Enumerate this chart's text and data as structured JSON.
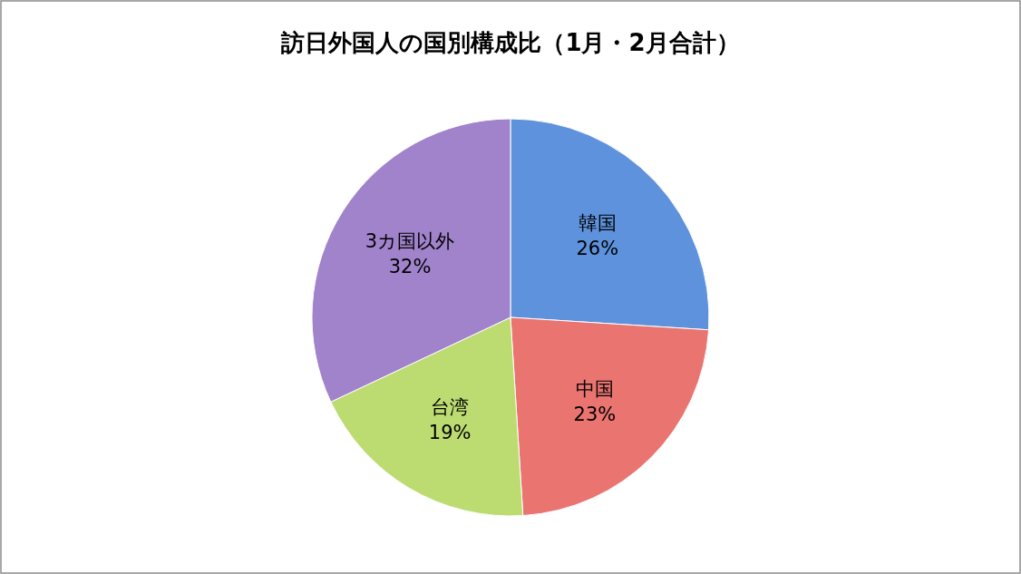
{
  "chart_data": {
    "type": "pie",
    "title": "訪日外国人の国別構成比（1月・2月合計）",
    "categories": [
      "韓国",
      "中国",
      "台湾",
      "3カ国以外"
    ],
    "values": [
      26,
      23,
      19,
      32
    ],
    "value_labels": [
      "26%",
      "23%",
      "19%",
      "32%"
    ],
    "colors": [
      "#5e92dc",
      "#e97470",
      "#bcdc72",
      "#a183cb"
    ]
  }
}
